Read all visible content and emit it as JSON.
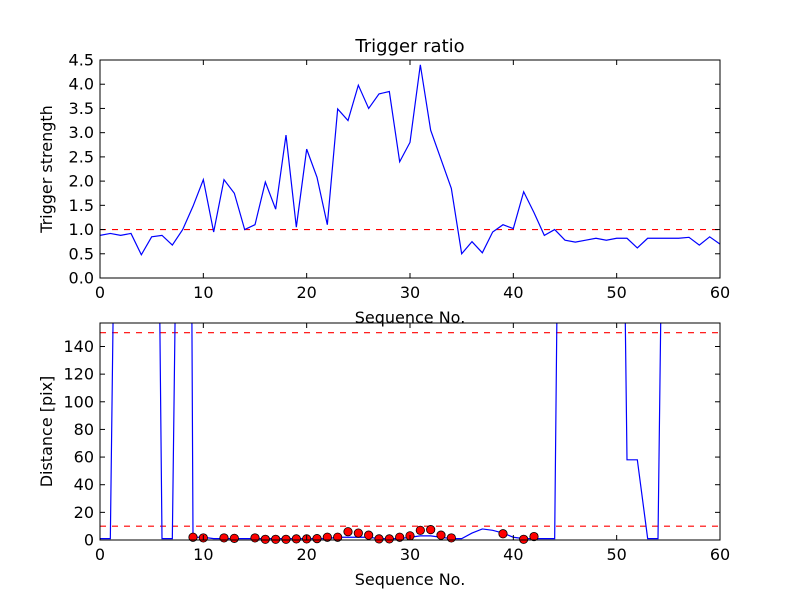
{
  "chart_data": [
    {
      "type": "line",
      "title": "Trigger ratio",
      "xlabel": "Sequence No.",
      "ylabel": "Trigger strength",
      "xlim": [
        0,
        60
      ],
      "ylim": [
        0,
        4.5
      ],
      "x_ticks": [
        0,
        10,
        20,
        30,
        40,
        50,
        60
      ],
      "y_ticks": [
        0.0,
        0.5,
        1.0,
        1.5,
        2.0,
        2.5,
        3.0,
        3.5,
        4.0,
        4.5
      ],
      "x_tick_labels": [
        "0",
        "10",
        "20",
        "30",
        "40",
        "50",
        "60"
      ],
      "y_tick_labels": [
        "0.0",
        "0.5",
        "1.0",
        "1.5",
        "2.0",
        "2.5",
        "3.0",
        "3.5",
        "4.0",
        "4.5"
      ],
      "grid": false,
      "colors": {
        "line": "#0000ff",
        "threshold": "#ff0000"
      },
      "thresholds": [
        1.0
      ],
      "series": [
        {
          "x": [
            0,
            1,
            2,
            3,
            4,
            5,
            6,
            7,
            8,
            9,
            10,
            11,
            12,
            13,
            14,
            15,
            16,
            17,
            18,
            19,
            20,
            21,
            22,
            23,
            24,
            25,
            26,
            27,
            28,
            29,
            30,
            31,
            32,
            33,
            34,
            35,
            36,
            37,
            38,
            39,
            40,
            41,
            42,
            43,
            44,
            45,
            46,
            47,
            48,
            49,
            50,
            51,
            52,
            53,
            54,
            55,
            56,
            57,
            58,
            59,
            60
          ],
          "y": [
            0.88,
            0.92,
            0.88,
            0.92,
            0.48,
            0.85,
            0.88,
            0.68,
            1.0,
            1.48,
            2.03,
            0.95,
            2.03,
            1.75,
            1.0,
            1.1,
            1.98,
            1.42,
            2.95,
            1.05,
            2.66,
            2.08,
            1.1,
            3.49,
            3.25,
            3.98,
            3.5,
            3.8,
            3.85,
            2.4,
            2.8,
            4.4,
            3.05,
            2.45,
            1.85,
            0.5,
            0.75,
            0.52,
            0.95,
            1.1,
            1.02,
            1.78,
            1.35,
            0.88,
            1.0,
            0.78,
            0.74,
            0.78,
            0.82,
            0.78,
            0.82,
            0.82,
            0.62,
            0.82,
            0.82,
            0.82,
            0.82,
            0.84,
            0.68,
            0.85,
            0.7
          ]
        }
      ]
    },
    {
      "type": "line",
      "title": "",
      "xlabel": "Sequence No.",
      "ylabel": "Distance [pix]",
      "xlim": [
        0,
        60
      ],
      "ylim": [
        0,
        157
      ],
      "x_ticks": [
        0,
        10,
        20,
        30,
        40,
        50,
        60
      ],
      "y_ticks": [
        0,
        20,
        40,
        60,
        80,
        100,
        120,
        140
      ],
      "x_tick_labels": [
        "0",
        "10",
        "20",
        "30",
        "40",
        "50",
        "60"
      ],
      "y_tick_labels": [
        "0",
        "20",
        "40",
        "60",
        "80",
        "100",
        "120",
        "140"
      ],
      "grid": false,
      "colors": {
        "line": "#0000ff",
        "threshold": "#ff0000",
        "marker": "#ff0000"
      },
      "thresholds": [
        150,
        10
      ],
      "series": [
        {
          "x": [
            0,
            1,
            1.5,
            5.6,
            6,
            7,
            7.5,
            8.8,
            9,
            10,
            11,
            12,
            13,
            14,
            15,
            16,
            17,
            18,
            19,
            20,
            21,
            22,
            23,
            24,
            25,
            26,
            27,
            28,
            29,
            30,
            31,
            32,
            33,
            34,
            35,
            36,
            37,
            38,
            39,
            40,
            41,
            42,
            43,
            44,
            44.4,
            50.6,
            51,
            52,
            53,
            54,
            54.5
          ],
          "y": [
            1,
            1,
            300,
            300,
            1,
            1,
            300,
            300,
            2,
            2,
            1,
            1,
            1,
            1,
            1,
            1,
            1,
            1,
            1,
            1,
            1,
            1,
            2,
            2,
            2,
            2,
            1,
            1,
            1,
            2,
            3,
            3,
            2,
            1,
            1,
            5,
            8,
            7,
            5,
            2,
            1,
            1,
            1,
            1,
            300,
            300,
            58,
            58,
            1,
            1,
            300
          ]
        },
        {
          "marker": "circle",
          "x": [
            9,
            10,
            12,
            13,
            15,
            16,
            17,
            18,
            19,
            20,
            21,
            22,
            23,
            24,
            25,
            26,
            27,
            28,
            29,
            30,
            31,
            32,
            33,
            34,
            39,
            41,
            42
          ],
          "y": [
            2,
            1.5,
            1.5,
            1.2,
            1.5,
            0.5,
            0.5,
            0.5,
            0.8,
            0.8,
            1,
            2,
            2,
            6,
            5,
            3.5,
            0.8,
            0.8,
            2,
            3,
            7,
            7.5,
            3.5,
            1.5,
            4.5,
            0.5,
            2.5
          ]
        }
      ]
    }
  ]
}
